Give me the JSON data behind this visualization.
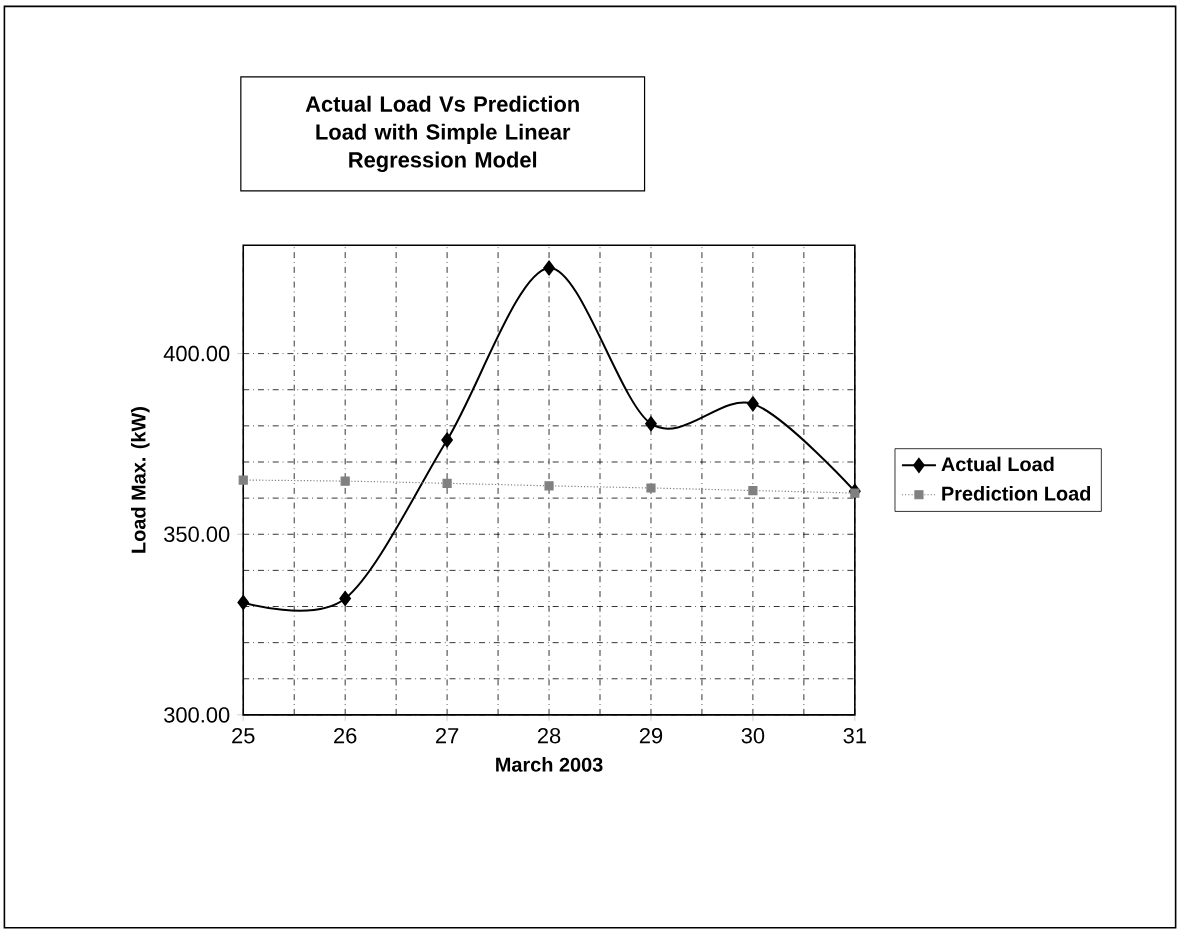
{
  "chart_data": {
    "type": "line",
    "title": "Actual Load Vs Prediction Load with Simple Linear Regression Model",
    "xlabel": "March 2003",
    "ylabel": "Load Max. (kW)",
    "x": [
      25,
      26,
      27,
      28,
      29,
      30,
      31
    ],
    "series": [
      {
        "name": "Actual Load",
        "color": "#000000",
        "marker": "diamond",
        "line_style": "solid",
        "values": [
          331.1,
          332.2,
          376.1,
          423.7,
          380.6,
          386.1,
          361.9
        ]
      },
      {
        "name": "Prediction Load",
        "color": "#808080",
        "marker": "square",
        "line_style": "dotted",
        "values": [
          365.0,
          364.7,
          364.1,
          363.4,
          362.8,
          362.1,
          361.4
        ]
      }
    ],
    "xlim": [
      25,
      31
    ],
    "xticks": [
      25,
      26,
      27,
      28,
      29,
      30,
      31
    ],
    "ylim": [
      300,
      430
    ],
    "yticks": [
      {
        "value": 300,
        "label": "300.00"
      },
      {
        "value": 350,
        "label": "350.00"
      },
      {
        "value": 400,
        "label": "400.00"
      }
    ],
    "grid": true,
    "legend": "right"
  }
}
